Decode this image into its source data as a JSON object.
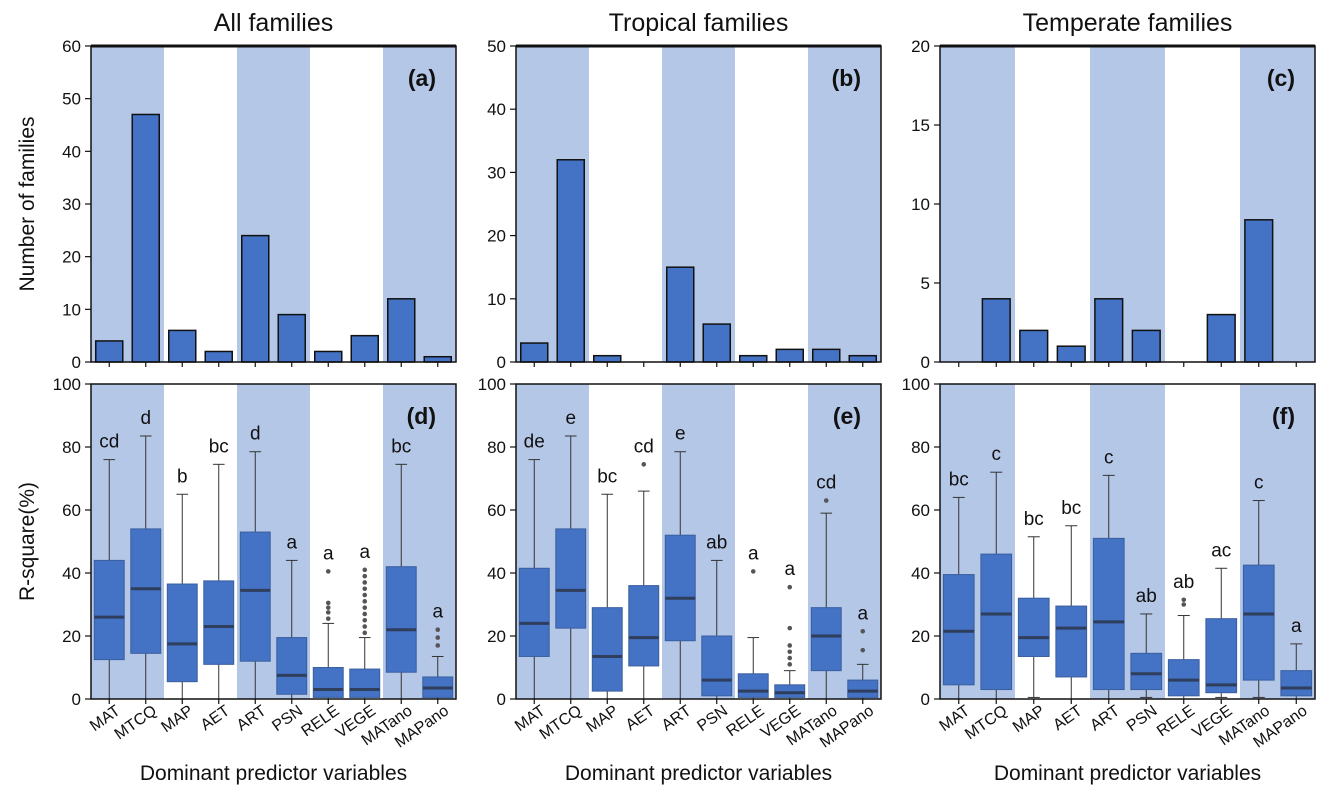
{
  "colors": {
    "band": "#B4C7E7",
    "bar_fill": "#4472C4",
    "bar_stroke": "#111111",
    "box_fill": "#4472C4",
    "median": "#2F3E5C",
    "outlier": "#555555",
    "axis": "#111111"
  },
  "chart_data": [
    {
      "id": "a",
      "type": "bar",
      "panel_label": "(a)",
      "title": "All families",
      "ylabel": "Number of families",
      "xlabel": "",
      "ylim": [
        0,
        60
      ],
      "yticks": [
        0,
        10,
        20,
        30,
        40,
        50,
        60
      ],
      "categories": [
        "MAT",
        "MTCQ",
        "MAP",
        "AET",
        "ART",
        "PSN",
        "RELE",
        "VEGE",
        "MATano",
        "MAPano"
      ],
      "values": [
        4,
        47,
        6,
        2,
        24,
        9,
        2,
        5,
        12,
        1
      ],
      "shaded_bands": [
        [
          0,
          1
        ],
        [
          4,
          5
        ],
        [
          8,
          9
        ]
      ]
    },
    {
      "id": "b",
      "type": "bar",
      "panel_label": "(b)",
      "title": "Tropical families",
      "ylabel": "",
      "xlabel": "",
      "ylim": [
        0,
        50
      ],
      "yticks": [
        0,
        10,
        20,
        30,
        40,
        50
      ],
      "categories": [
        "MAT",
        "MTCQ",
        "MAP",
        "AET",
        "ART",
        "PSN",
        "RELE",
        "VEGE",
        "MATano",
        "MAPano"
      ],
      "values": [
        3,
        32,
        1,
        0,
        15,
        6,
        1,
        2,
        2,
        1
      ],
      "shaded_bands": [
        [
          0,
          1
        ],
        [
          4,
          5
        ],
        [
          8,
          9
        ]
      ]
    },
    {
      "id": "c",
      "type": "bar",
      "panel_label": "(c)",
      "title": "Temperate families",
      "ylabel": "",
      "xlabel": "",
      "ylim": [
        0,
        20
      ],
      "yticks": [
        0,
        5,
        10,
        15,
        20
      ],
      "categories": [
        "MAT",
        "MTCQ",
        "MAP",
        "AET",
        "ART",
        "PSN",
        "RELE",
        "VEGE",
        "MATano",
        "MAPano"
      ],
      "values": [
        0,
        4,
        2,
        1,
        4,
        2,
        0,
        3,
        9,
        0
      ],
      "shaded_bands": [
        [
          0,
          1
        ],
        [
          4,
          5
        ],
        [
          8,
          9
        ]
      ]
    },
    {
      "id": "d",
      "type": "box",
      "panel_label": "(d)",
      "ylabel": "R-square(%)",
      "xlabel": "Dominant predictor variables",
      "ylim": [
        0,
        100
      ],
      "yticks": [
        0,
        20,
        40,
        60,
        80,
        100
      ],
      "categories": [
        "MAT",
        "MTCQ",
        "MAP",
        "AET",
        "ART",
        "PSN",
        "RELE",
        "VEGE",
        "MATano",
        "MAPano"
      ],
      "shaded_bands": [
        [
          0,
          1
        ],
        [
          4,
          5
        ],
        [
          8,
          9
        ]
      ],
      "boxes": [
        {
          "min": 0,
          "q1": 12.5,
          "median": 26,
          "q3": 44,
          "max": 76,
          "outliers": [],
          "letter": "cd"
        },
        {
          "min": 0,
          "q1": 14.5,
          "median": 35,
          "q3": 54,
          "max": 83.5,
          "outliers": [],
          "letter": "d"
        },
        {
          "min": 0,
          "q1": 5.5,
          "median": 17.5,
          "q3": 36.5,
          "max": 65,
          "outliers": [],
          "letter": "b"
        },
        {
          "min": 0,
          "q1": 11,
          "median": 23,
          "q3": 37.5,
          "max": 74.5,
          "outliers": [],
          "letter": "bc"
        },
        {
          "min": 0,
          "q1": 12,
          "median": 34.5,
          "q3": 53,
          "max": 78.5,
          "outliers": [],
          "letter": "d"
        },
        {
          "min": 0,
          "q1": 1.5,
          "median": 7.5,
          "q3": 19.5,
          "max": 44,
          "outliers": [],
          "letter": "a"
        },
        {
          "min": 0,
          "q1": 0.5,
          "median": 3,
          "q3": 10,
          "max": 24,
          "outliers": [
            25.5,
            27.5,
            29,
            30.5,
            40.5
          ],
          "letter": "a"
        },
        {
          "min": 0,
          "q1": 0.5,
          "median": 3,
          "q3": 9.5,
          "max": 19.5,
          "outliers": [
            21,
            23,
            25,
            27,
            29,
            31,
            33,
            35,
            37,
            39,
            41
          ],
          "letter": "a"
        },
        {
          "min": 0,
          "q1": 8.5,
          "median": 22,
          "q3": 42,
          "max": 74.5,
          "outliers": [],
          "letter": "bc"
        },
        {
          "min": 0,
          "q1": 0.5,
          "median": 3.5,
          "q3": 7,
          "max": 13.5,
          "outliers": [
            17,
            19.5,
            22
          ],
          "letter": "a"
        }
      ]
    },
    {
      "id": "e",
      "type": "box",
      "panel_label": "(e)",
      "ylabel": "",
      "xlabel": "Dominant predictor variables",
      "ylim": [
        0,
        100
      ],
      "yticks": [
        0,
        20,
        40,
        60,
        80,
        100
      ],
      "categories": [
        "MAT",
        "MTCQ",
        "MAP",
        "AET",
        "ART",
        "PSN",
        "RELE",
        "VEGE",
        "MATano",
        "MAPano"
      ],
      "shaded_bands": [
        [
          0,
          1
        ],
        [
          4,
          5
        ],
        [
          8,
          9
        ]
      ],
      "boxes": [
        {
          "min": 0,
          "q1": 13.5,
          "median": 24,
          "q3": 41.5,
          "max": 76,
          "outliers": [],
          "letter": "de"
        },
        {
          "min": 0,
          "q1": 22.5,
          "median": 34.5,
          "q3": 54,
          "max": 83.5,
          "outliers": [],
          "letter": "e"
        },
        {
          "min": 0,
          "q1": 2.5,
          "median": 13.5,
          "q3": 29,
          "max": 65,
          "outliers": [],
          "letter": "bc"
        },
        {
          "min": 0,
          "q1": 10.5,
          "median": 19.5,
          "q3": 36,
          "max": 66,
          "outliers": [
            74.5
          ],
          "letter": "cd"
        },
        {
          "min": 0,
          "q1": 18.5,
          "median": 32,
          "q3": 52,
          "max": 78.5,
          "outliers": [],
          "letter": "e"
        },
        {
          "min": 0,
          "q1": 1,
          "median": 6,
          "q3": 20,
          "max": 44,
          "outliers": [],
          "letter": "ab"
        },
        {
          "min": 0,
          "q1": 0.5,
          "median": 2.5,
          "q3": 8,
          "max": 19.5,
          "outliers": [
            40.5
          ],
          "letter": "a"
        },
        {
          "min": 0,
          "q1": 0.5,
          "median": 2,
          "q3": 4.5,
          "max": 9,
          "outliers": [
            11,
            13,
            15,
            17,
            22.5,
            35.5
          ],
          "letter": "a"
        },
        {
          "min": 0,
          "q1": 9,
          "median": 20,
          "q3": 29,
          "max": 59,
          "outliers": [
            63
          ],
          "letter": "cd"
        },
        {
          "min": 0,
          "q1": 0.5,
          "median": 2.5,
          "q3": 6,
          "max": 11,
          "outliers": [
            15.5,
            21.5
          ],
          "letter": "a"
        }
      ]
    },
    {
      "id": "f",
      "type": "box",
      "panel_label": "(f)",
      "ylabel": "",
      "xlabel": "Dominant predictor variables",
      "ylim": [
        0,
        100
      ],
      "yticks": [
        0,
        20,
        40,
        60,
        80,
        100
      ],
      "categories": [
        "MAT",
        "MTCQ",
        "MAP",
        "AET",
        "ART",
        "PSN",
        "RELE",
        "VEGE",
        "MATano",
        "MAPano"
      ],
      "shaded_bands": [
        [
          0,
          1
        ],
        [
          4,
          5
        ],
        [
          8,
          9
        ]
      ],
      "boxes": [
        {
          "min": 0,
          "q1": 4.5,
          "median": 21.5,
          "q3": 39.5,
          "max": 64,
          "outliers": [],
          "letter": "bc"
        },
        {
          "min": 0,
          "q1": 3,
          "median": 27,
          "q3": 46,
          "max": 72,
          "outliers": [],
          "letter": "c"
        },
        {
          "min": 0.5,
          "q1": 13.5,
          "median": 19.5,
          "q3": 32,
          "max": 51.5,
          "outliers": [],
          "letter": "bc"
        },
        {
          "min": 0,
          "q1": 7,
          "median": 22.5,
          "q3": 29.5,
          "max": 55,
          "outliers": [],
          "letter": "bc"
        },
        {
          "min": 0,
          "q1": 3,
          "median": 24.5,
          "q3": 51,
          "max": 71,
          "outliers": [],
          "letter": "c"
        },
        {
          "min": 0.5,
          "q1": 3,
          "median": 8,
          "q3": 14.5,
          "max": 27,
          "outliers": [],
          "letter": "ab"
        },
        {
          "min": 0,
          "q1": 1,
          "median": 6,
          "q3": 12.5,
          "max": 26.5,
          "outliers": [
            30,
            31.5
          ],
          "letter": "ab"
        },
        {
          "min": 0.5,
          "q1": 2,
          "median": 4.5,
          "q3": 25.5,
          "max": 41.5,
          "outliers": [],
          "letter": "ac"
        },
        {
          "min": 0.5,
          "q1": 6,
          "median": 27,
          "q3": 42.5,
          "max": 63,
          "outliers": [],
          "letter": "c"
        },
        {
          "min": 0,
          "q1": 1,
          "median": 3.5,
          "q3": 9,
          "max": 17.5,
          "outliers": [],
          "letter": "a"
        }
      ]
    }
  ]
}
